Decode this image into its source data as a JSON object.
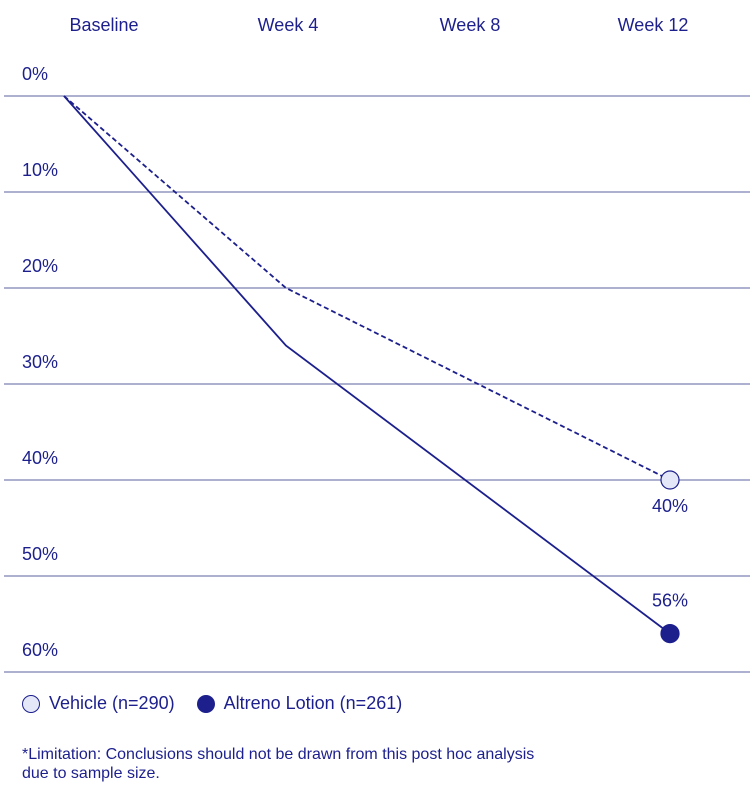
{
  "chart_data": {
    "type": "line",
    "x": [
      "Baseline",
      "Week 4",
      "Week 8",
      "Week 12"
    ],
    "y_ticks": [
      "0%",
      "10%",
      "20%",
      "30%",
      "40%",
      "50%",
      "60%"
    ],
    "ylim": [
      0,
      62
    ],
    "y_inverted": true,
    "grid": true,
    "series": [
      {
        "name": "Vehicle (n=290)",
        "x": [
          "Baseline",
          "Week 4",
          "Week 12"
        ],
        "values": [
          0,
          20,
          40
        ],
        "line_style": "dashed",
        "marker_fill": "#e4e7f7",
        "end_label": "40%"
      },
      {
        "name": "Altreno Lotion (n=261)",
        "x": [
          "Baseline",
          "Week 4",
          "Week 12"
        ],
        "values": [
          0,
          26,
          56
        ],
        "line_style": "solid",
        "marker_fill": "#1c1f8c",
        "end_label": "56%"
      }
    ],
    "legend_position": "bottom-left"
  },
  "legend": {
    "vehicle_label": "Vehicle (n=290)",
    "altreno_label": "Altreno Lotion (n=261)"
  },
  "footnote": "*Limitation: Conclusions should not be drawn from this post hoc analysis due to sample size.",
  "colors": {
    "accent": "#1c1f8c",
    "grid": "#7d80b3",
    "vehicle_marker_fill": "#e4e7f7"
  }
}
